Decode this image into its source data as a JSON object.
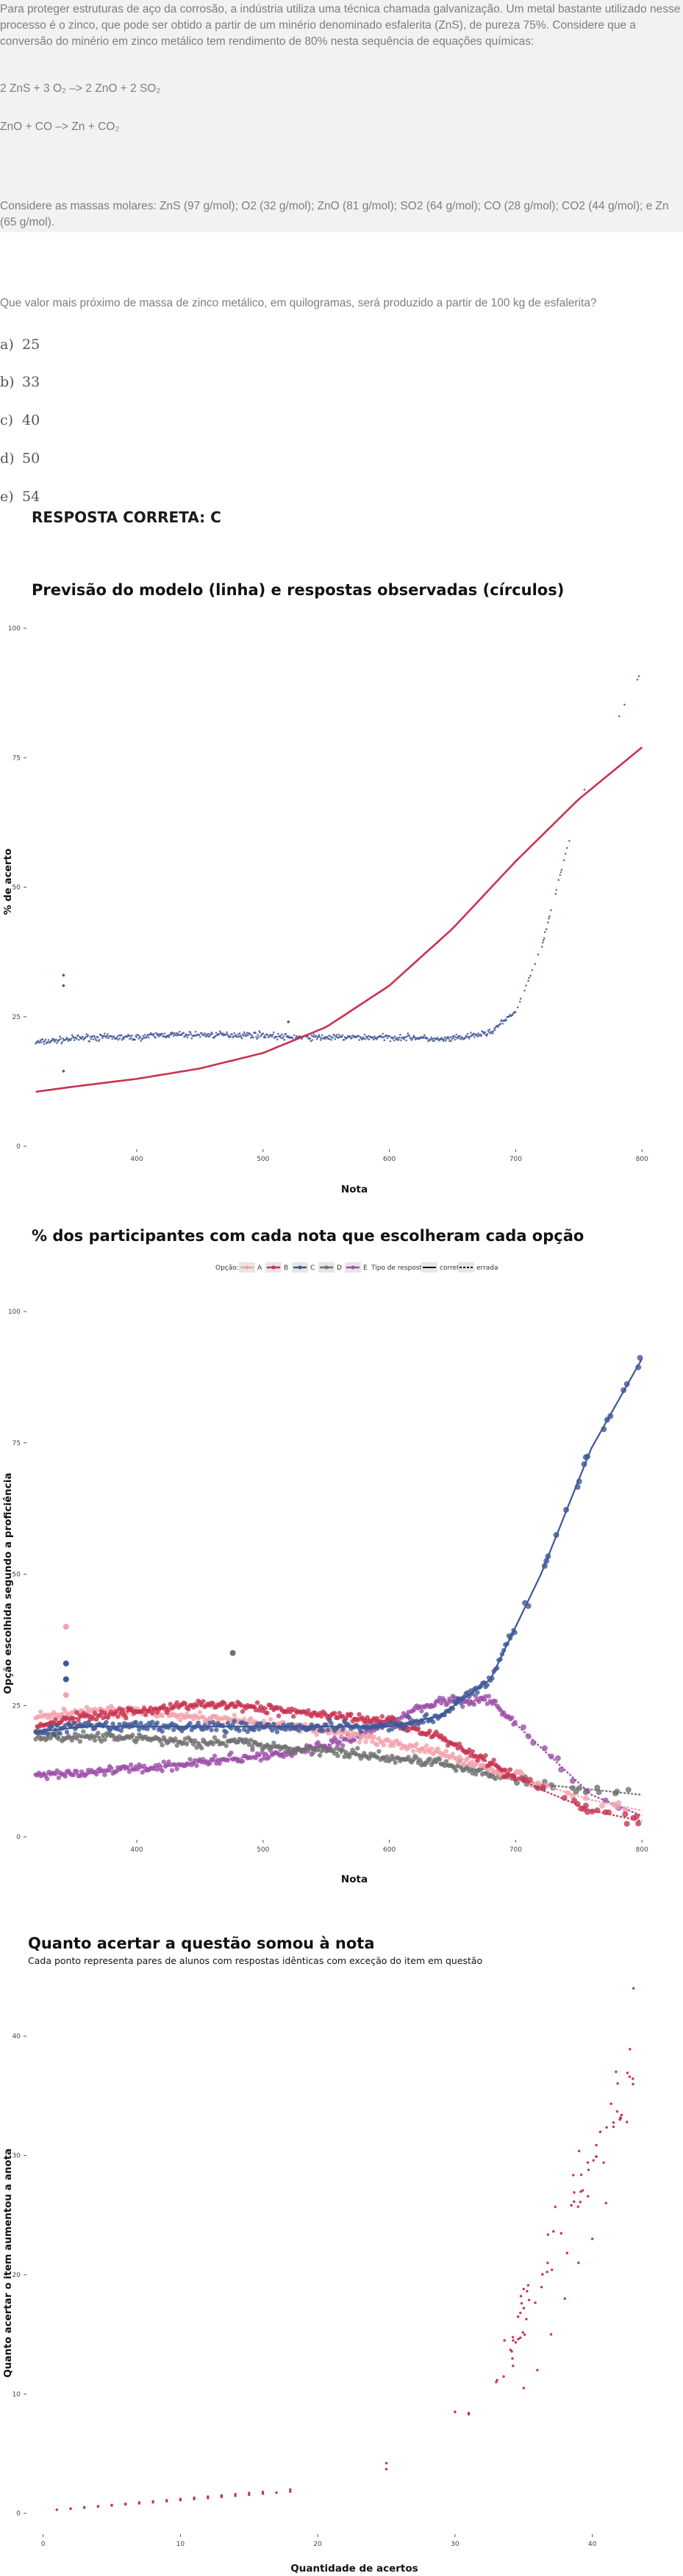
{
  "question": {
    "paragraph1": "Para proteger estruturas de aço da corrosão, a indústria utiliza uma técnica chamada galvanização. Um metal bastante utilizado nesse processo é o zinco, que pode ser obtido a partir de um minério denominado esfalerita (ZnS), de pureza 75%. Considere que a conversão do minério em zinco metálico tem rendimento de 80% nesta sequência de equações químicas:",
    "equation1": "2 ZnS + 3 O₂ –> 2 ZnO + 2 SO₂",
    "equation2": "ZnO + CO –>  Zn + CO₂",
    "paragraph2": "Considere as massas molares: ZnS (97 g/mol); O2 (32 g/mol); ZnO (81 g/mol); SO2 (64 g/mol); CO (28 g/mol); CO2 (44 g/mol); e Zn (65 g/mol).",
    "prompt": "Que valor mais próximo de massa de zinco metálico, em quilogramas, será produzido a partir de 100 kg de esfalerita?",
    "options": [
      {
        "letter": "a)",
        "text": "25"
      },
      {
        "letter": "b)",
        "text": "33"
      },
      {
        "letter": "c)",
        "text": "40"
      },
      {
        "letter": "d)",
        "text": "50"
      },
      {
        "letter": "e)",
        "text": "54"
      }
    ],
    "answer": "RESPOSTA CORRETA: C"
  },
  "colors": {
    "blue": "#3f5796",
    "red": "#c8334f",
    "pink": "#f2a3ad",
    "gray": "#707070",
    "purple": "#9c4fa8"
  },
  "chart_data": [
    {
      "type": "scatter",
      "title": "Previsão do modelo (linha) e respostas observadas (círculos)",
      "xlabel": "Nota",
      "ylabel": "% de acerto",
      "xticks": [
        400,
        500,
        600,
        700,
        800
      ],
      "yticks": [
        0,
        25,
        50,
        75,
        100
      ],
      "xlim": [
        315,
        815
      ],
      "ylim": [
        0,
        100
      ],
      "observed": {
        "x": [
          320,
          340,
          360,
          380,
          400,
          420,
          440,
          460,
          480,
          500,
          520,
          540,
          560,
          580,
          600,
          620,
          640,
          660,
          680,
          700,
          720,
          740,
          760,
          780,
          800
        ],
        "values": [
          20,
          20.5,
          21,
          21,
          21,
          21.5,
          21.5,
          21.5,
          21.5,
          21.5,
          21,
          21,
          21,
          21,
          21,
          21,
          20.5,
          21,
          22,
          26,
          38,
          57,
          73,
          82,
          92
        ]
      },
      "model": {
        "x": [
          320,
          350,
          400,
          450,
          500,
          550,
          600,
          650,
          700,
          750,
          800
        ],
        "values": [
          10.5,
          11.5,
          13,
          15,
          18,
          23,
          31,
          42,
          55,
          67,
          77
        ]
      }
    },
    {
      "type": "scatter",
      "title": "% dos participantes com cada nota que escolheram cada opção",
      "xlabel": "Nota",
      "ylabel": "Opção escolhida segundo a proficiência",
      "legend_option_label": "Opção:",
      "legend_type_label": "Tipo de resposta:",
      "legend_placement": "top",
      "xticks": [
        400,
        500,
        600,
        700,
        800
      ],
      "yticks": [
        0,
        25,
        50,
        75,
        100
      ],
      "xlim": [
        315,
        815
      ],
      "ylim": [
        0,
        100
      ],
      "x": [
        320,
        360,
        400,
        440,
        480,
        520,
        560,
        600,
        640,
        680,
        720,
        760,
        800
      ],
      "series": [
        {
          "name": "A",
          "type": "errada",
          "values": [
            23,
            24,
            24,
            23,
            22,
            21,
            20,
            18,
            16,
            13,
            10,
            7,
            5
          ]
        },
        {
          "name": "B",
          "type": "errada",
          "values": [
            21,
            23,
            24,
            25,
            25,
            24,
            23,
            22,
            19,
            14,
            9,
            5,
            3
          ]
        },
        {
          "name": "C",
          "type": "correta",
          "values": [
            20,
            21,
            21,
            21,
            21,
            21,
            21,
            21,
            23,
            30,
            50,
            74,
            91
          ]
        },
        {
          "name": "D",
          "type": "errada",
          "values": [
            19,
            19,
            19,
            18,
            18,
            17,
            16,
            15,
            14,
            12,
            10,
            9,
            8
          ]
        },
        {
          "name": "E",
          "type": "errada",
          "values": [
            12,
            12,
            13,
            14,
            15,
            16,
            18,
            22,
            26,
            26,
            17,
            8,
            4
          ]
        }
      ],
      "legend": [
        {
          "label": "A",
          "color": "#f2a3ad"
        },
        {
          "label": "B",
          "color": "#c8334f"
        },
        {
          "label": "C",
          "color": "#3f5796"
        },
        {
          "label": "D",
          "color": "#707070"
        },
        {
          "label": "E",
          "color": "#9c4fa8"
        }
      ],
      "type_legend": [
        {
          "label": "correta",
          "style": "solid"
        },
        {
          "label": "errada",
          "style": "dashed"
        }
      ]
    },
    {
      "type": "scatter",
      "title": "Quanto acertar a questão somou à nota",
      "subtitle": "Cada ponto representa pares de alunos com respostas idênticas com exceção do item em questão",
      "xlabel": "Quantidade de acertos",
      "ylabel": "Quanto acertar o item aumentou a anota",
      "xticks": [
        0,
        10,
        20,
        30,
        40
      ],
      "yticks": [
        0,
        10,
        20,
        30,
        40
      ],
      "xlim": [
        -1,
        45
      ],
      "ylim": [
        -1.5,
        45
      ],
      "x": [
        1,
        2,
        3,
        4,
        5,
        6,
        7,
        8,
        9,
        10,
        11,
        12,
        13,
        14,
        15,
        16,
        18,
        25,
        30,
        31,
        33,
        35,
        36,
        37,
        38,
        39,
        40,
        41,
        42,
        43
      ],
      "values": [
        0.3,
        0.4,
        0.5,
        0.6,
        0.7,
        0.8,
        0.9,
        1.0,
        1.1,
        1.2,
        1.3,
        1.4,
        1.5,
        1.6,
        1.7,
        1.8,
        2.0,
        4.2,
        8.5,
        8.3,
        11,
        10.5,
        12,
        15,
        18,
        21,
        23,
        26,
        33,
        44
      ]
    }
  ]
}
